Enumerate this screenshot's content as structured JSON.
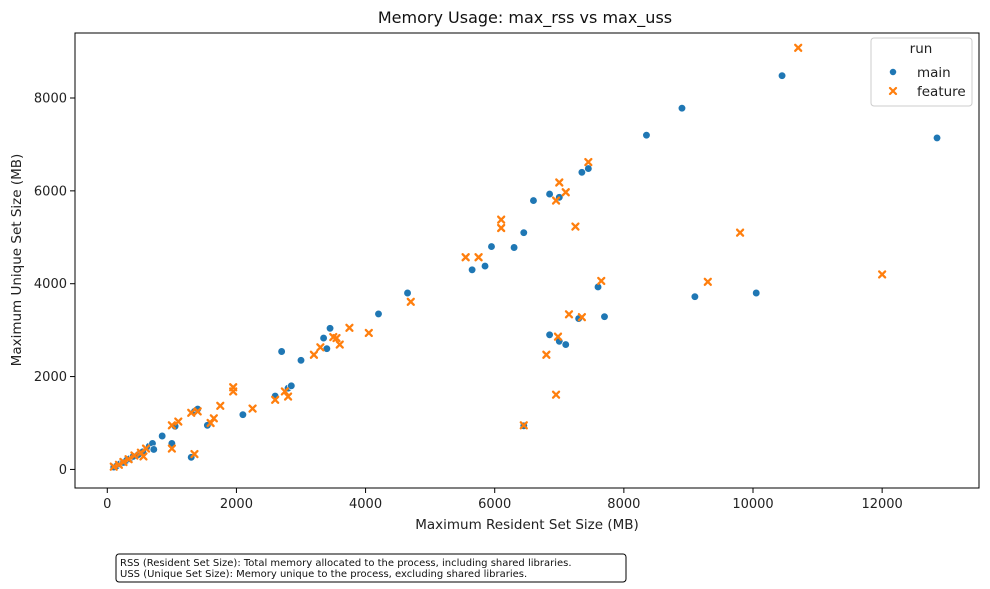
{
  "chart_data": {
    "type": "scatter",
    "title": "Memory Usage: max_rss vs max_uss",
    "xlabel": "Maximum Resident Set Size (MB)",
    "ylabel": "Maximum Unique Set Size (MB)",
    "xlim": [
      -500,
      13500
    ],
    "ylim": [
      -400,
      9400
    ],
    "xticks": [
      0,
      2000,
      4000,
      6000,
      8000,
      10000,
      12000
    ],
    "yticks": [
      0,
      2000,
      4000,
      6000,
      8000
    ],
    "grid": false,
    "legend": {
      "title": "run",
      "placement": "top-right"
    },
    "series": [
      {
        "name": "main",
        "color": "#1f77b4",
        "marker": "circle",
        "points": [
          [
            100,
            50
          ],
          [
            150,
            80
          ],
          [
            200,
            120
          ],
          [
            250,
            150
          ],
          [
            300,
            200
          ],
          [
            350,
            230
          ],
          [
            400,
            280
          ],
          [
            480,
            320
          ],
          [
            550,
            380
          ],
          [
            650,
            500
          ],
          [
            700,
            560
          ],
          [
            720,
            430
          ],
          [
            850,
            720
          ],
          [
            1000,
            560
          ],
          [
            1050,
            930
          ],
          [
            1300,
            260
          ],
          [
            1350,
            1250
          ],
          [
            1400,
            1300
          ],
          [
            1550,
            950
          ],
          [
            2100,
            1180
          ],
          [
            2600,
            1580
          ],
          [
            2700,
            2540
          ],
          [
            2800,
            1750
          ],
          [
            2850,
            1800
          ],
          [
            3000,
            2350
          ],
          [
            3350,
            2830
          ],
          [
            3400,
            2600
          ],
          [
            3450,
            3040
          ],
          [
            4200,
            3350
          ],
          [
            4650,
            3800
          ],
          [
            5650,
            4300
          ],
          [
            5850,
            4380
          ],
          [
            5950,
            4800
          ],
          [
            6300,
            4780
          ],
          [
            6450,
            5100
          ],
          [
            6450,
            940
          ],
          [
            6600,
            5790
          ],
          [
            6850,
            5930
          ],
          [
            6850,
            2900
          ],
          [
            7000,
            2760
          ],
          [
            7000,
            5860
          ],
          [
            7100,
            2690
          ],
          [
            7350,
            6400
          ],
          [
            7450,
            6480
          ],
          [
            7600,
            3930
          ],
          [
            7700,
            3290
          ],
          [
            7300,
            3250
          ],
          [
            8350,
            7200
          ],
          [
            8900,
            7780
          ],
          [
            9100,
            3720
          ],
          [
            10050,
            3800
          ],
          [
            10450,
            8480
          ],
          [
            12850,
            7140
          ]
        ]
      },
      {
        "name": "feature",
        "color": "#ff7f0e",
        "marker": "x",
        "points": [
          [
            100,
            60
          ],
          [
            180,
            100
          ],
          [
            250,
            160
          ],
          [
            330,
            220
          ],
          [
            420,
            300
          ],
          [
            520,
            360
          ],
          [
            560,
            280
          ],
          [
            600,
            450
          ],
          [
            1000,
            450
          ],
          [
            1000,
            950
          ],
          [
            1100,
            1030
          ],
          [
            1300,
            1220
          ],
          [
            1350,
            330
          ],
          [
            1400,
            1250
          ],
          [
            1600,
            1000
          ],
          [
            1650,
            1100
          ],
          [
            1750,
            1370
          ],
          [
            1950,
            1680
          ],
          [
            1950,
            1770
          ],
          [
            2250,
            1310
          ],
          [
            2600,
            1500
          ],
          [
            2750,
            1680
          ],
          [
            2800,
            1570
          ],
          [
            3200,
            2470
          ],
          [
            3300,
            2630
          ],
          [
            3500,
            2850
          ],
          [
            3550,
            2830
          ],
          [
            3600,
            2690
          ],
          [
            3750,
            3050
          ],
          [
            4050,
            2940
          ],
          [
            4700,
            3610
          ],
          [
            5550,
            4570
          ],
          [
            5750,
            4570
          ],
          [
            6100,
            5380
          ],
          [
            6100,
            5200
          ],
          [
            6450,
            950
          ],
          [
            6800,
            2470
          ],
          [
            6950,
            1610
          ],
          [
            6950,
            5790
          ],
          [
            6980,
            2860
          ],
          [
            7000,
            6180
          ],
          [
            7100,
            5970
          ],
          [
            7150,
            3340
          ],
          [
            7250,
            5230
          ],
          [
            7350,
            3280
          ],
          [
            7450,
            6620
          ],
          [
            7650,
            4060
          ],
          [
            9300,
            4040
          ],
          [
            9800,
            5100
          ],
          [
            10700,
            9080
          ],
          [
            12000,
            4200
          ]
        ]
      }
    ]
  },
  "note": {
    "line1": "RSS (Resident Set Size): Total memory allocated to the process, including shared libraries.",
    "line2": "USS (Unique Set Size): Memory unique to the process, excluding shared libraries."
  }
}
